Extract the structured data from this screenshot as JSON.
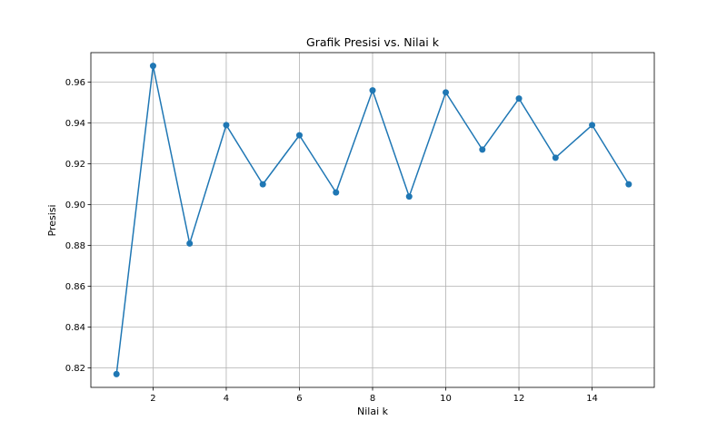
{
  "chart_data": {
    "type": "line",
    "title": "Grafik Presisi vs. Nilai k",
    "xlabel": "Nilai k",
    "ylabel": "Presisi",
    "x": [
      1,
      2,
      3,
      4,
      5,
      6,
      7,
      8,
      9,
      10,
      11,
      12,
      13,
      14,
      15
    ],
    "series": [
      {
        "values": [
          0.817,
          0.968,
          0.881,
          0.939,
          0.91,
          0.934,
          0.906,
          0.956,
          0.904,
          0.955,
          0.927,
          0.952,
          0.923,
          0.939,
          0.91
        ],
        "color": "#1f77b4",
        "marker": "circle"
      }
    ],
    "xlim": [
      0.3,
      15.7
    ],
    "ylim": [
      0.8105,
      0.9745
    ],
    "xticks": [
      2,
      4,
      6,
      8,
      10,
      12,
      14
    ],
    "xtick_labels": [
      "2",
      "4",
      "6",
      "8",
      "10",
      "12",
      "14"
    ],
    "yticks": [
      0.82,
      0.84,
      0.86,
      0.88,
      0.9,
      0.92,
      0.94,
      0.96
    ],
    "ytick_labels": [
      "0.82",
      "0.84",
      "0.86",
      "0.88",
      "0.90",
      "0.92",
      "0.94",
      "0.96"
    ],
    "grid": true,
    "grid_color": "#b0b0b0",
    "axes_color": "#000000"
  }
}
